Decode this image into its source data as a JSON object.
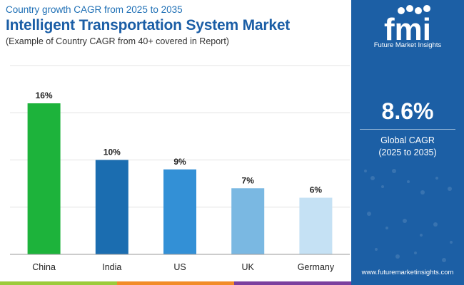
{
  "header": {
    "subtitle": "Country growth CAGR from 2025 to 2035",
    "title": "Intelligent Transportation System Market",
    "note": "(Example of Country CAGR from 40+ covered in Report)"
  },
  "chart_data": {
    "type": "bar",
    "title": "Intelligent Transportation System Market",
    "categories": [
      "China",
      "India",
      "US",
      "UK",
      "Germany"
    ],
    "values": [
      16,
      10,
      9,
      7,
      6
    ],
    "value_labels": [
      "16%",
      "10%",
      "9%",
      "7%",
      "6%"
    ],
    "colors": [
      "#1db33b",
      "#1b6db0",
      "#3390d6",
      "#7ab8e2",
      "#c5e1f4"
    ],
    "ylim": [
      0,
      20
    ],
    "grid": true,
    "xlabel": "",
    "ylabel": ""
  },
  "sidebar": {
    "logo_text": "fmi",
    "logo_caption": "Future Market Insights",
    "cagr_value": "8.6%",
    "cagr_label": "Global CAGR",
    "cagr_period": "(2025 to 2035)",
    "website": "www.futuremarketinsights.com",
    "background_color": "#1c5fa5"
  },
  "stripe_colors": [
    "#9ccb3b",
    "#f28c28",
    "#7b3f9e"
  ]
}
